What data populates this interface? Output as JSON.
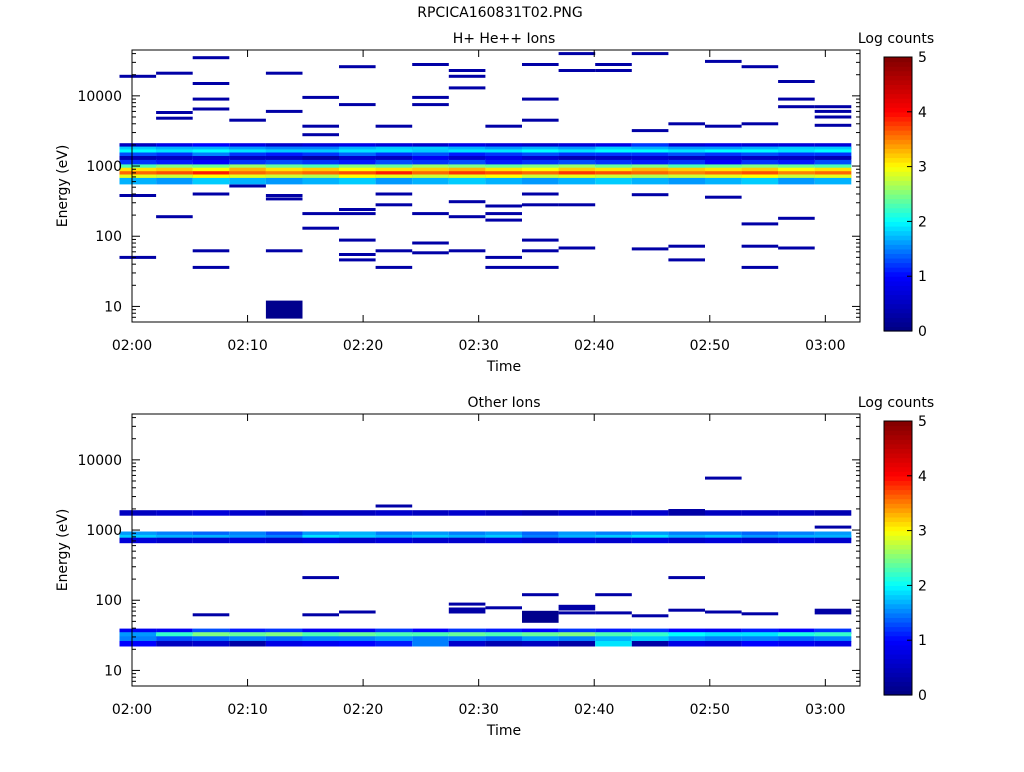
{
  "figure": {
    "title": "RPCICA160831T02.PNG"
  },
  "colorbar": {
    "title": "Log counts",
    "min": 0,
    "max": 5,
    "ticks": [
      0,
      1,
      2,
      3,
      4,
      5
    ],
    "colormap": [
      "#000080",
      "#0000ff",
      "#00ffff",
      "#ffff00",
      "#ff0000",
      "#800000"
    ]
  },
  "chart_data": [
    {
      "type": "heatmap",
      "title": "H+ He++ Ions",
      "xlabel": "Time",
      "ylabel": "Energy (eV)",
      "x_scale": "time",
      "y_scale": "log",
      "xlim": [
        "02:00",
        "03:03"
      ],
      "ylim": [
        6,
        45000
      ],
      "x_ticks": [
        "02:00",
        "02:10",
        "02:20",
        "02:30",
        "02:40",
        "02:50",
        "03:00"
      ],
      "y_ticks": [
        10,
        100,
        1000,
        10000
      ],
      "z_label": "Log counts",
      "zlim": [
        0,
        5
      ],
      "time_bins": [
        "02:00:30",
        "02:03:40",
        "02:06:50",
        "02:10:00",
        "02:13:10",
        "02:16:20",
        "02:19:30",
        "02:22:40",
        "02:25:50",
        "02:29:00",
        "02:32:10",
        "02:35:20",
        "02:38:30",
        "02:41:40",
        "02:44:50",
        "02:48:00",
        "02:51:10",
        "02:54:20",
        "02:57:30",
        "03:00:40"
      ],
      "energy_bands": [
        {
          "energy": 1900,
          "values": [
            0.5,
            0.8,
            1.0,
            0.8,
            0.6,
            0.7,
            0.8,
            0.7,
            0.6,
            0.8,
            0.7,
            0.6,
            0.7,
            0.8,
            1.2,
            0.7,
            0.8,
            0.7,
            0.7,
            0.7
          ]
        },
        {
          "energy": 1700,
          "values": [
            1.8,
            1.7,
            1.7,
            1.6,
            1.5,
            1.5,
            1.7,
            1.8,
            1.8,
            1.7,
            1.6,
            1.7,
            1.6,
            1.8,
            1.7,
            1.6,
            1.6,
            1.7,
            1.8,
            1.8
          ]
        },
        {
          "energy": 1550,
          "values": [
            2.0,
            1.9,
            2.0,
            1.9,
            1.8,
            1.8,
            1.9,
            1.9,
            1.8,
            1.9,
            1.9,
            2.0,
            1.9,
            2.0,
            2.0,
            1.9,
            2.0,
            2.0,
            1.9,
            2.0
          ]
        },
        {
          "energy": 1400,
          "values": [
            1.3,
            1.2,
            1.5,
            1.2,
            1.1,
            1.2,
            1.4,
            1.2,
            1.3,
            1.1,
            1.2,
            1.3,
            1.2,
            1.2,
            1.2,
            1.3,
            1.2,
            1.3,
            1.2,
            1.2
          ]
        },
        {
          "energy": 1250,
          "values": [
            0.4,
            0.5,
            0.6,
            0.5,
            0.5,
            0.3,
            0.6,
            0.5,
            0.9,
            0.6,
            0.8,
            0.6,
            0.4,
            0.5,
            0.6,
            0.5,
            0.6,
            0.5,
            0.5,
            0.4
          ]
        },
        {
          "energy": 1100,
          "values": [
            1.2,
            1.1,
            1.0,
            1.2,
            1.3,
            1.2,
            1.1,
            1.3,
            1.2,
            1.3,
            1.1,
            1.2,
            1.3,
            1.2,
            1.1,
            1.2,
            1.0,
            1.2,
            1.1,
            1.3
          ]
        },
        {
          "energy": 950,
          "values": [
            2.3,
            2.5,
            2.4,
            2.6,
            2.4,
            2.3,
            2.5,
            2.4,
            2.6,
            2.5,
            2.4,
            2.5,
            2.6,
            2.4,
            2.5,
            2.3,
            2.4,
            2.5,
            2.4,
            2.3
          ]
        },
        {
          "energy": 850,
          "values": [
            3.1,
            3.2,
            3.0,
            3.3,
            3.1,
            3.2,
            3.0,
            3.1,
            3.2,
            3.3,
            3.1,
            3.0,
            3.2,
            3.1,
            3.3,
            3.2,
            3.1,
            3.2,
            3.0,
            3.1
          ]
        },
        {
          "energy": 760,
          "values": [
            3.6,
            3.7,
            3.9,
            3.6,
            3.5,
            3.6,
            3.7,
            3.9,
            3.6,
            3.8,
            3.7,
            3.6,
            3.8,
            3.7,
            3.6,
            3.5,
            3.6,
            3.7,
            3.5,
            3.6
          ]
        },
        {
          "energy": 680,
          "values": [
            2.9,
            2.8,
            3.0,
            2.9,
            2.8,
            2.7,
            3.0,
            2.9,
            2.8,
            2.9,
            3.0,
            2.8,
            2.9,
            2.8,
            2.7,
            2.8,
            2.9,
            3.0,
            2.8,
            2.9
          ]
        },
        {
          "energy": 610,
          "values": [
            1.7,
            1.6,
            1.8,
            1.7,
            1.6,
            1.7,
            1.8,
            1.6,
            1.7,
            1.8,
            1.7,
            1.6,
            1.7,
            1.8,
            1.7,
            1.6,
            1.7,
            1.8,
            1.6,
            1.7
          ]
        }
      ],
      "sparse_marks": [
        {
          "t": "02:00:30",
          "energy": 19000
        },
        {
          "t": "02:03:40",
          "energy": 21000
        },
        {
          "t": "02:06:50",
          "energy": 35000
        },
        {
          "t": "02:06:50",
          "energy": 15000
        },
        {
          "t": "02:03:40",
          "energy": 5800
        },
        {
          "t": "02:03:40",
          "energy": 4800
        },
        {
          "t": "02:06:50",
          "energy": 9000
        },
        {
          "t": "02:06:50",
          "energy": 6500
        },
        {
          "t": "02:10:00",
          "energy": 4500
        },
        {
          "t": "02:13:10",
          "energy": 21000
        },
        {
          "t": "02:13:10",
          "energy": 6000
        },
        {
          "t": "02:16:20",
          "energy": 9500
        },
        {
          "t": "02:16:20",
          "energy": 3700
        },
        {
          "t": "02:16:20",
          "energy": 2800
        },
        {
          "t": "02:19:30",
          "energy": 26000
        },
        {
          "t": "02:19:30",
          "energy": 7500
        },
        {
          "t": "02:22:40",
          "energy": 3700
        },
        {
          "t": "02:25:50",
          "energy": 28000
        },
        {
          "t": "02:25:50",
          "energy": 9500
        },
        {
          "t": "02:25:50",
          "energy": 7500
        },
        {
          "t": "02:29:00",
          "energy": 23000
        },
        {
          "t": "02:29:00",
          "energy": 19000
        },
        {
          "t": "02:29:00",
          "energy": 13000
        },
        {
          "t": "02:32:10",
          "energy": 3700
        },
        {
          "t": "02:35:20",
          "energy": 28000
        },
        {
          "t": "02:35:20",
          "energy": 9000
        },
        {
          "t": "02:35:20",
          "energy": 4500
        },
        {
          "t": "02:38:30",
          "energy": 40000
        },
        {
          "t": "02:38:30",
          "energy": 23000
        },
        {
          "t": "02:41:40",
          "energy": 28000
        },
        {
          "t": "02:41:40",
          "energy": 23000
        },
        {
          "t": "02:44:50",
          "energy": 40000
        },
        {
          "t": "02:44:50",
          "energy": 3200
        },
        {
          "t": "02:48:00",
          "energy": 4000
        },
        {
          "t": "02:51:10",
          "energy": 31000
        },
        {
          "t": "02:51:10",
          "energy": 3700
        },
        {
          "t": "02:54:20",
          "energy": 26000
        },
        {
          "t": "02:54:20",
          "energy": 4000
        },
        {
          "t": "02:57:30",
          "energy": 16000
        },
        {
          "t": "02:57:30",
          "energy": 9000
        },
        {
          "t": "02:57:30",
          "energy": 7000
        },
        {
          "t": "03:00:40",
          "energy": 7000
        },
        {
          "t": "03:00:40",
          "energy": 6000
        },
        {
          "t": "03:00:40",
          "energy": 5000
        },
        {
          "t": "03:00:40",
          "energy": 3800
        },
        {
          "t": "02:00:30",
          "energy": 380
        },
        {
          "t": "02:03:40",
          "energy": 190
        },
        {
          "t": "02:06:50",
          "energy": 400
        },
        {
          "t": "02:10:00",
          "energy": 520
        },
        {
          "t": "02:13:10",
          "energy": 380
        },
        {
          "t": "02:13:10",
          "energy": 340
        },
        {
          "t": "02:16:20",
          "energy": 210
        },
        {
          "t": "02:16:20",
          "energy": 130
        },
        {
          "t": "02:19:30",
          "energy": 240
        },
        {
          "t": "02:19:30",
          "energy": 210
        },
        {
          "t": "02:22:40",
          "energy": 400
        },
        {
          "t": "02:22:40",
          "energy": 280
        },
        {
          "t": "02:25:50",
          "energy": 210
        },
        {
          "t": "02:25:50",
          "energy": 80
        },
        {
          "t": "02:29:00",
          "energy": 310
        },
        {
          "t": "02:29:00",
          "energy": 190
        },
        {
          "t": "02:32:10",
          "energy": 270
        },
        {
          "t": "02:32:10",
          "energy": 210
        },
        {
          "t": "02:32:10",
          "energy": 170
        },
        {
          "t": "02:35:20",
          "energy": 400
        },
        {
          "t": "02:35:20",
          "energy": 280
        },
        {
          "t": "02:38:30",
          "energy": 280
        },
        {
          "t": "02:44:50",
          "energy": 390
        },
        {
          "t": "02:51:10",
          "energy": 360
        },
        {
          "t": "02:54:20",
          "energy": 150
        },
        {
          "t": "02:57:30",
          "energy": 180
        },
        {
          "t": "02:00:30",
          "energy": 50
        },
        {
          "t": "02:06:50",
          "energy": 62
        },
        {
          "t": "02:06:50",
          "energy": 36
        },
        {
          "t": "02:13:10",
          "energy": 62
        },
        {
          "t": "02:19:30",
          "energy": 88
        },
        {
          "t": "02:19:30",
          "energy": 55
        },
        {
          "t": "02:19:30",
          "energy": 46
        },
        {
          "t": "02:22:40",
          "energy": 62
        },
        {
          "t": "02:22:40",
          "energy": 36
        },
        {
          "t": "02:25:50",
          "energy": 58
        },
        {
          "t": "02:29:00",
          "energy": 62
        },
        {
          "t": "02:32:10",
          "energy": 50
        },
        {
          "t": "02:32:10",
          "energy": 36
        },
        {
          "t": "02:35:20",
          "energy": 88
        },
        {
          "t": "02:35:20",
          "energy": 62
        },
        {
          "t": "02:35:20",
          "energy": 36
        },
        {
          "t": "02:38:30",
          "energy": 68
        },
        {
          "t": "02:44:50",
          "energy": 66
        },
        {
          "t": "02:48:00",
          "energy": 72
        },
        {
          "t": "02:48:00",
          "energy": 46
        },
        {
          "t": "02:54:20",
          "energy": 72
        },
        {
          "t": "02:54:20",
          "energy": 36
        },
        {
          "t": "02:57:30",
          "energy": 68
        },
        {
          "t": "02:13:10",
          "energy": 9,
          "tall": true
        }
      ]
    },
    {
      "type": "heatmap",
      "title": "Other Ions",
      "xlabel": "Time",
      "ylabel": "Energy (eV)",
      "x_scale": "time",
      "y_scale": "log",
      "xlim": [
        "02:00",
        "03:03"
      ],
      "ylim": [
        6,
        45000
      ],
      "x_ticks": [
        "02:00",
        "02:10",
        "02:20",
        "02:30",
        "02:40",
        "02:50",
        "03:00"
      ],
      "y_ticks": [
        10,
        100,
        1000,
        10000
      ],
      "z_label": "Log counts",
      "zlim": [
        0,
        5
      ],
      "time_bins": [
        "02:00:30",
        "02:03:40",
        "02:06:50",
        "02:10:00",
        "02:13:10",
        "02:16:20",
        "02:19:30",
        "02:22:40",
        "02:25:50",
        "02:29:00",
        "02:32:10",
        "02:35:20",
        "02:38:30",
        "02:41:40",
        "02:44:50",
        "02:48:00",
        "02:51:10",
        "02:54:20",
        "02:57:30",
        "03:00:40"
      ],
      "energy_bands": [
        {
          "energy": 1750,
          "values": [
            0.5,
            0.6,
            0.7,
            0.6,
            0.4,
            0.5,
            0.5,
            0.6,
            0.5,
            0.6,
            0.5,
            0.4,
            0.6,
            0.6,
            0.6,
            0.3,
            0.5,
            0.5,
            0.5,
            0.4
          ]
        },
        {
          "energy": 870,
          "values": [
            1.6,
            1.5,
            1.4,
            1.5,
            1.3,
            1.6,
            1.7,
            1.5,
            1.6,
            1.5,
            1.6,
            1.4,
            1.6,
            1.5,
            1.6,
            1.5,
            1.5,
            1.4,
            1.5,
            1.6
          ]
        },
        {
          "energy": 780,
          "values": [
            1.8,
            1.7,
            1.7,
            1.6,
            1.5,
            1.9,
            1.8,
            1.7,
            1.8,
            1.7,
            1.8,
            1.5,
            1.7,
            1.8,
            1.9,
            1.7,
            1.8,
            1.6,
            1.7,
            1.7
          ]
        },
        {
          "energy": 710,
          "values": [
            0.7,
            0.6,
            0.6,
            0.7,
            0.6,
            0.7,
            0.6,
            0.7,
            0.6,
            0.6,
            0.7,
            0.6,
            0.7,
            0.6,
            0.7,
            0.6,
            0.7,
            0.6,
            0.7,
            0.6
          ]
        },
        {
          "energy": 36,
          "values": [
            0.9,
            0.9,
            1.3,
            1.1,
            1.2,
            0.9,
            0.9,
            1.2,
            1.0,
            1.2,
            1.1,
            1.0,
            1.2,
            1.1,
            1.2,
            1.0,
            0.9,
            1.1,
            1.0,
            1.2
          ]
        },
        {
          "energy": 32,
          "values": [
            1.6,
            2.2,
            2.5,
            2.4,
            2.5,
            2.3,
            2.4,
            2.3,
            2.3,
            2.4,
            2.3,
            2.4,
            2.5,
            2.3,
            2.2,
            2.0,
            1.9,
            1.9,
            2.1,
            2.2
          ]
        },
        {
          "energy": 28,
          "values": [
            1.5,
            1.3,
            1.4,
            1.5,
            1.4,
            1.5,
            1.5,
            1.6,
            1.5,
            1.5,
            1.4,
            1.6,
            1.5,
            1.7,
            1.8,
            1.6,
            1.5,
            1.5,
            1.4,
            1.5
          ]
        },
        {
          "energy": 24,
          "values": [
            1.0,
            0.5,
            0.6,
            0.3,
            0.8,
            0.9,
            1.0,
            1.1,
            1.5,
            0.6,
            0.4,
            0.5,
            0.3,
            1.9,
            0.3,
            0.8,
            0.7,
            1.0,
            0.9,
            0.8
          ]
        }
      ],
      "sparse_marks": [
        {
          "t": "02:22:40",
          "energy": 2200
        },
        {
          "t": "02:48:00",
          "energy": 1900
        },
        {
          "t": "02:51:10",
          "energy": 5500
        },
        {
          "t": "03:00:40",
          "energy": 1100
        },
        {
          "t": "02:16:20",
          "energy": 210
        },
        {
          "t": "02:48:00",
          "energy": 210
        },
        {
          "t": "02:35:20",
          "energy": 120
        },
        {
          "t": "02:41:40",
          "energy": 120
        },
        {
          "t": "02:29:00",
          "energy": 88
        },
        {
          "t": "02:29:00",
          "energy": 75
        },
        {
          "t": "02:32:10",
          "energy": 78
        },
        {
          "t": "02:38:30",
          "energy": 82
        },
        {
          "t": "02:38:30",
          "energy": 75
        },
        {
          "t": "02:06:50",
          "energy": 62
        },
        {
          "t": "02:16:20",
          "energy": 62
        },
        {
          "t": "02:19:30",
          "energy": 68
        },
        {
          "t": "02:29:00",
          "energy": 68
        },
        {
          "t": "02:35:20",
          "energy": 58,
          "tall": true
        },
        {
          "t": "02:41:40",
          "energy": 66
        },
        {
          "t": "02:44:50",
          "energy": 60
        },
        {
          "t": "02:48:00",
          "energy": 72
        },
        {
          "t": "02:51:10",
          "energy": 68
        },
        {
          "t": "02:54:20",
          "energy": 64
        },
        {
          "t": "03:00:40",
          "energy": 72
        },
        {
          "t": "03:00:40",
          "energy": 66
        },
        {
          "t": "02:38:30",
          "energy": 66
        }
      ]
    }
  ]
}
